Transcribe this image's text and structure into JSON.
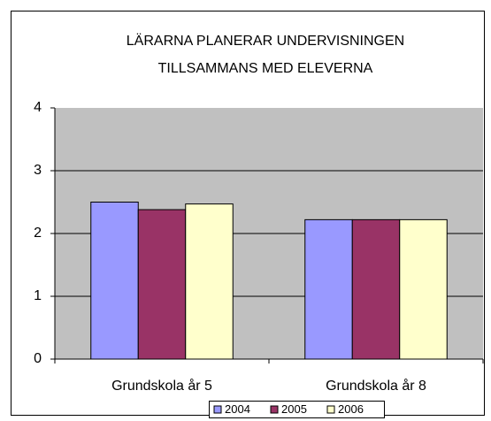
{
  "chart_data": {
    "type": "bar",
    "title": [
      "LÄRARNA PLANERAR UNDERVISNINGEN",
      "TILLSAMMANS MED ELEVERNA"
    ],
    "categories": [
      "Grundskola år 5",
      "Grundskola år 8"
    ],
    "series": [
      {
        "name": "2004",
        "color": "#9999ff",
        "values": [
          2.5,
          2.22
        ]
      },
      {
        "name": "2005",
        "color": "#993366",
        "values": [
          2.38,
          2.22
        ]
      },
      {
        "name": "2006",
        "color": "#ffffcc",
        "values": [
          2.47,
          2.22
        ]
      }
    ],
    "ylim": [
      0,
      4
    ],
    "yticks": [
      0,
      1,
      2,
      3,
      4
    ],
    "grid": true,
    "legend": "bottom"
  }
}
